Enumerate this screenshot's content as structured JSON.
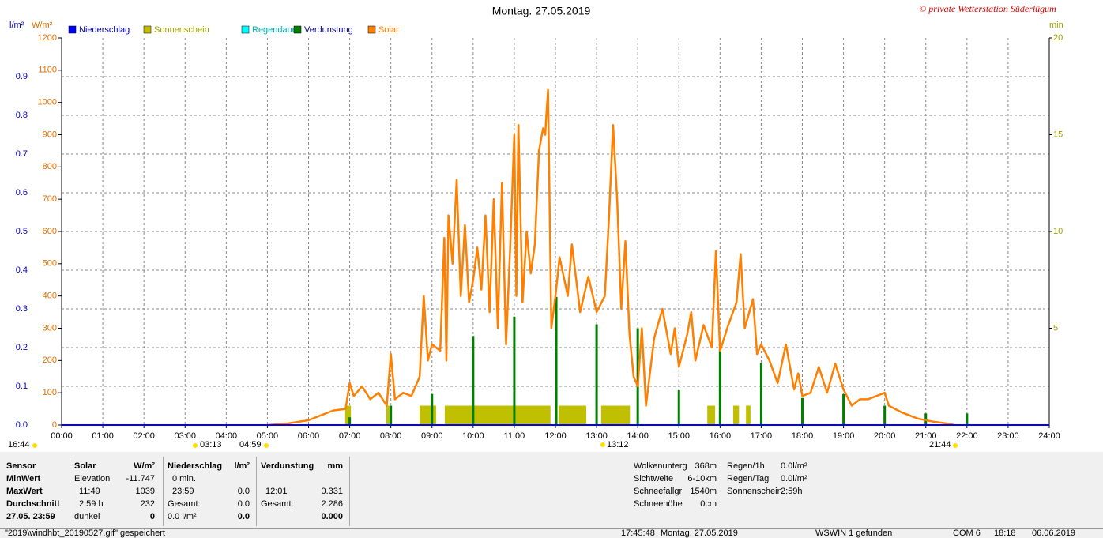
{
  "chart_data": {
    "type": "line",
    "title": "Montag. 27.05.2019",
    "credit": "© private Wetterstation Süderlügum",
    "y_label": "l/m²",
    "y2_label": "W/m²",
    "y3_label": "min",
    "xlim": [
      0,
      24
    ],
    "xticks": [
      {
        "value": 0,
        "label": "00:00"
      },
      {
        "value": 1,
        "label": "01:00"
      },
      {
        "value": 2,
        "label": "02:00"
      },
      {
        "value": 3,
        "label": "03:00"
      },
      {
        "value": 4,
        "label": "04:00"
      },
      {
        "value": 5,
        "label": "05:00"
      },
      {
        "value": 6,
        "label": "06:00"
      },
      {
        "value": 7,
        "label": "07:00"
      },
      {
        "value": 8,
        "label": "08:00"
      },
      {
        "value": 9,
        "label": "09:00"
      },
      {
        "value": 10,
        "label": "10:00"
      },
      {
        "value": 11,
        "label": "11:00"
      },
      {
        "value": 12,
        "label": "12:00"
      },
      {
        "value": 13,
        "label": "13:00"
      },
      {
        "value": 14,
        "label": "14:00"
      },
      {
        "value": 15,
        "label": "15:00"
      },
      {
        "value": 16,
        "label": "16:00"
      },
      {
        "value": 17,
        "label": "17:00"
      },
      {
        "value": 18,
        "label": "18:00"
      },
      {
        "value": 19,
        "label": "19:00"
      },
      {
        "value": 20,
        "label": "20:00"
      },
      {
        "value": 21,
        "label": "21:00"
      },
      {
        "value": 22,
        "label": "22:00"
      },
      {
        "value": 23,
        "label": "23:00"
      },
      {
        "value": 24,
        "label": "24:00"
      }
    ],
    "ylim": [
      0,
      1
    ],
    "yticks": [
      {
        "value": 0,
        "label": "0.0"
      },
      0.1,
      0.2,
      0.3,
      0.4,
      0.5,
      0.6,
      0.7,
      0.8,
      0.9
    ],
    "y2lim": [
      0,
      1200
    ],
    "y2ticks": [
      0,
      100,
      200,
      300,
      400,
      500,
      600,
      700,
      800,
      900,
      1000,
      1100,
      1200
    ],
    "y3lim": [
      0,
      20
    ],
    "y3ticks": [
      5,
      10,
      15,
      20
    ],
    "grid": true,
    "series": [
      {
        "name": "Niederschlag",
        "color": "#0000ff",
        "label_color": "#0000c0",
        "axis": "y",
        "kind": "line",
        "x": [
          0,
          24
        ],
        "values": [
          0,
          0
        ]
      },
      {
        "name": "Sonnenschein",
        "color": "#c0c000",
        "label_color": "#a0a000",
        "axis": "y3",
        "kind": "interval",
        "intervals": [
          [
            6.89,
            7.03
          ],
          [
            7.89,
            7.99
          ],
          [
            8.7,
            9.1
          ],
          [
            9.31,
            11.88
          ],
          [
            12.08,
            12.75
          ],
          [
            13.11,
            13.81
          ],
          [
            15.69,
            15.88
          ],
          [
            16.32,
            16.46
          ],
          [
            16.63,
            16.74
          ]
        ],
        "values": [
          1,
          1,
          1,
          1,
          1,
          1,
          1,
          1,
          1
        ]
      },
      {
        "name": "Regendauer",
        "color": "#00ffff",
        "label_color": "#00b0b0",
        "axis": "y3",
        "kind": "line",
        "x": [],
        "values": []
      },
      {
        "name": "Verdunstung",
        "color": "#008000",
        "label_color": "#000080",
        "axis": "y",
        "kind": "bar",
        "x": [
          7,
          8,
          9,
          10,
          11,
          12.02,
          13,
          14,
          15,
          16,
          17,
          18,
          19,
          20,
          21,
          22
        ],
        "values": [
          0.02,
          0.05,
          0.08,
          0.23,
          0.28,
          0.331,
          0.26,
          0.25,
          0.09,
          0.21,
          0.16,
          0.07,
          0.08,
          0.05,
          0.03,
          0.03
        ]
      },
      {
        "name": "Solar",
        "color": "#ff8000",
        "label_color": "#ff8000",
        "axis": "y2",
        "kind": "line",
        "x": [
          5,
          5.5,
          6,
          6.3,
          6.6,
          6.9,
          7,
          7.1,
          7.3,
          7.5,
          7.7,
          7.9,
          8,
          8.1,
          8.3,
          8.5,
          8.7,
          8.8,
          8.9,
          9,
          9.2,
          9.3,
          9.35,
          9.4,
          9.5,
          9.6,
          9.7,
          9.8,
          9.9,
          10,
          10.1,
          10.2,
          10.3,
          10.4,
          10.5,
          10.6,
          10.7,
          10.8,
          10.9,
          11,
          11.05,
          11.1,
          11.2,
          11.3,
          11.4,
          11.5,
          11.6,
          11.7,
          11.75,
          11.82,
          11.9,
          12,
          12.1,
          12.3,
          12.4,
          12.6,
          12.8,
          13,
          13.2,
          13.3,
          13.4,
          13.5,
          13.6,
          13.7,
          13.8,
          13.9,
          14,
          14.1,
          14.2,
          14.4,
          14.6,
          14.8,
          14.9,
          15,
          15.2,
          15.3,
          15.4,
          15.6,
          15.8,
          15.9,
          16,
          16.2,
          16.4,
          16.5,
          16.6,
          16.8,
          16.9,
          17,
          17.2,
          17.4,
          17.6,
          17.8,
          17.9,
          18,
          18.2,
          18.4,
          18.6,
          18.8,
          19,
          19.2,
          19.4,
          19.6,
          19.8,
          20,
          20.1,
          20.4,
          20.8,
          21.2,
          21.5,
          21.7
        ],
        "values": [
          0,
          5,
          15,
          30,
          45,
          50,
          130,
          90,
          120,
          80,
          100,
          60,
          220,
          80,
          100,
          90,
          150,
          400,
          200,
          250,
          230,
          580,
          200,
          650,
          500,
          760,
          400,
          620,
          380,
          450,
          550,
          420,
          650,
          350,
          700,
          300,
          750,
          250,
          550,
          900,
          400,
          930,
          380,
          600,
          470,
          560,
          850,
          920,
          900,
          1039,
          300,
          400,
          520,
          400,
          560,
          350,
          460,
          350,
          400,
          640,
          930,
          700,
          360,
          570,
          280,
          150,
          120,
          300,
          60,
          270,
          360,
          220,
          300,
          180,
          280,
          350,
          200,
          310,
          240,
          540,
          230,
          310,
          380,
          530,
          300,
          390,
          220,
          250,
          200,
          130,
          250,
          110,
          160,
          90,
          100,
          180,
          100,
          190,
          110,
          60,
          80,
          80,
          90,
          100,
          60,
          40,
          20,
          10,
          5,
          0
        ]
      }
    ],
    "annotations": [
      "16:44",
      "03:13",
      "04:59",
      "13:12",
      "21:44"
    ]
  },
  "info_panel": {
    "labels": [
      "Sensor",
      "MinWert",
      "MaxWert",
      "Durchschnitt",
      "27.05. 23:59"
    ],
    "columns": [
      {
        "header": "Solar",
        "unit": "W/m²",
        "rows": [
          [
            "Elevation",
            "-11.747"
          ],
          [
            "11:49",
            "1039"
          ],
          [
            "2:59 h",
            "232"
          ],
          [
            "dunkel",
            "0"
          ]
        ]
      },
      {
        "header": "Niederschlag",
        "unit": "l/m²",
        "rows": [
          [
            "0 min."
          ],
          [
            "23:59",
            "0.0"
          ],
          [
            "Gesamt:",
            "0.0"
          ],
          [
            "0.0 l/m²",
            "0.0"
          ]
        ]
      },
      {
        "header": "Verdunstung",
        "unit": "mm",
        "rows": [
          null,
          [
            "12:01",
            "0.331"
          ],
          [
            "Gesamt:",
            "2.286"
          ],
          [
            null,
            "0.000"
          ]
        ]
      }
    ],
    "extra1": [
      [
        "Wolkenunterg",
        "368m"
      ],
      [
        "Sichtweite",
        "6-10km"
      ],
      [
        "Schneefallgr",
        "1540m"
      ],
      [
        "Schneehöhe",
        "0cm"
      ]
    ],
    "extra2": [
      [
        "Regen/1h",
        "0.0l/m²"
      ],
      [
        "Regen/Tag",
        "0.0l/m²"
      ],
      [
        "Sonnenschein",
        "2:59h"
      ]
    ]
  },
  "status_bar": [
    "\"2019\\windhbt_20190527.gif\" gespeichert",
    "17:45:48",
    "Montag. 27.05.2019",
    "WSWIN 1 gefunden",
    "COM 6",
    "18:18",
    "06.06.2019"
  ]
}
